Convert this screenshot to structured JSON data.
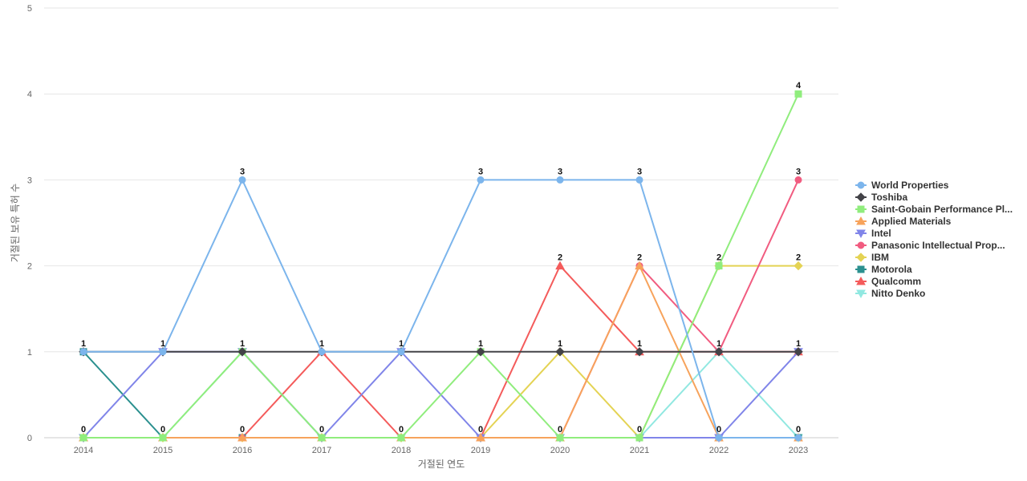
{
  "chart_data": {
    "type": "line",
    "title": "",
    "xlabel": "거절된 연도",
    "ylabel": "거절된 보유 특허 수",
    "x": [
      "2014",
      "2015",
      "2016",
      "2017",
      "2018",
      "2019",
      "2020",
      "2021",
      "2022",
      "2023"
    ],
    "ylim": [
      0,
      5
    ],
    "yticks": [
      0,
      1,
      2,
      3,
      4,
      5
    ],
    "grid": true,
    "legend_position": "right",
    "series": [
      {
        "name": "World Properties",
        "color": "#7cb5ec",
        "marker": "circle",
        "values": [
          1,
          1,
          3,
          1,
          1,
          3,
          3,
          3,
          0,
          0
        ]
      },
      {
        "name": "Toshiba",
        "color": "#434348",
        "marker": "diamond",
        "values": [
          1,
          1,
          1,
          1,
          1,
          1,
          1,
          1,
          1,
          1
        ]
      },
      {
        "name": "Saint-Gobain Performance Pl...",
        "color": "#90ed7d",
        "marker": "square",
        "values": [
          0,
          0,
          1,
          0,
          0,
          1,
          0,
          0,
          2,
          4
        ]
      },
      {
        "name": "Applied Materials",
        "color": "#f7a35c",
        "marker": "triangle",
        "values": [
          0,
          0,
          0,
          0,
          0,
          0,
          0,
          2,
          0,
          0
        ]
      },
      {
        "name": "Intel",
        "color": "#8085e9",
        "marker": "triangle-down",
        "values": [
          0,
          1,
          1,
          0,
          1,
          0,
          0,
          0,
          0,
          1
        ]
      },
      {
        "name": "Panasonic Intellectual Prop...",
        "color": "#f15c80",
        "marker": "circle",
        "values": [
          0,
          0,
          0,
          0,
          0,
          0,
          0,
          2,
          1,
          3
        ]
      },
      {
        "name": "IBM",
        "color": "#e4d354",
        "marker": "diamond",
        "values": [
          0,
          0,
          0,
          0,
          0,
          0,
          1,
          0,
          2,
          2
        ]
      },
      {
        "name": "Motorola",
        "color": "#2b908f",
        "marker": "square",
        "values": [
          1,
          0,
          0,
          0,
          0,
          0,
          0,
          0,
          0,
          0
        ]
      },
      {
        "name": "Qualcomm",
        "color": "#f45b5b",
        "marker": "triangle",
        "values": [
          0,
          0,
          0,
          1,
          0,
          0,
          2,
          1,
          1,
          1
        ]
      },
      {
        "name": "Nitto Denko",
        "color": "#91e8e1",
        "marker": "triangle-down",
        "values": [
          0,
          0,
          1,
          0,
          0,
          0,
          0,
          0,
          1,
          0
        ]
      }
    ],
    "data_labels": {
      "values": [
        "1",
        "1",
        "3",
        "1",
        "1",
        "3",
        "3",
        "3",
        "2",
        "4"
      ],
      "low_values": [
        "0",
        "0",
        "0",
        "0",
        "0",
        "0",
        "0",
        "0",
        "0",
        "0"
      ],
      "mid_values": [
        "",
        "",
        "",
        "",
        "",
        "",
        "2",
        "2",
        "1",
        "3"
      ],
      "extra_values": [
        "",
        "",
        "1",
        "",
        "",
        "1",
        "1",
        "1",
        "",
        "2"
      ],
      "extra_low": [
        "",
        "",
        "",
        "",
        "",
        "",
        "",
        "",
        "",
        "1"
      ]
    }
  }
}
